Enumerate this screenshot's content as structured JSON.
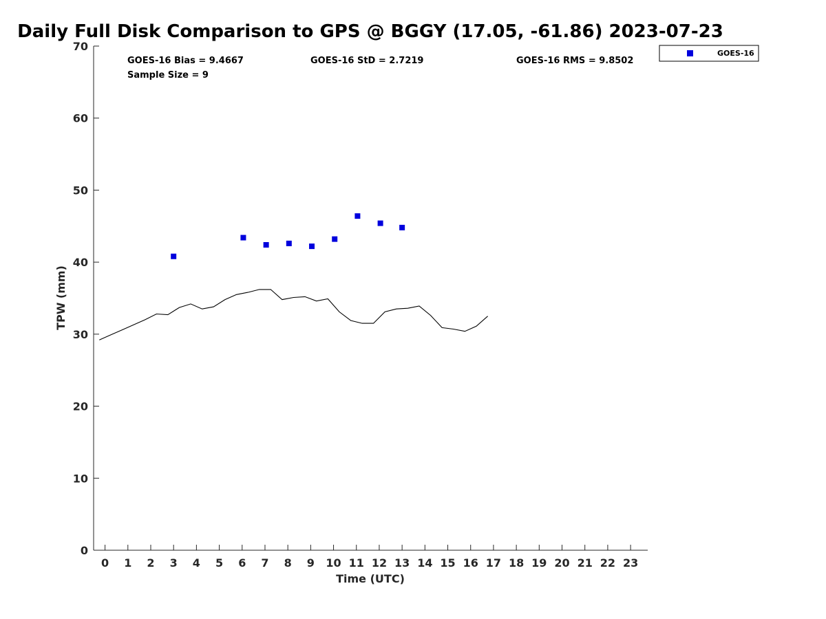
{
  "chart_data": {
    "type": "scatter",
    "title": "Daily Full Disk Comparison to GPS @ BGGY (17.05, -61.86) 2023-07-23",
    "xlabel": "Time (UTC)",
    "ylabel": "TPW (mm)",
    "xlim": [
      -0.5,
      23.75
    ],
    "ylim": [
      0,
      70
    ],
    "x_ticks": [
      "0",
      "1",
      "2",
      "3",
      "4",
      "5",
      "6",
      "7",
      "8",
      "9",
      "10",
      "11",
      "12",
      "13",
      "14",
      "15",
      "16",
      "17",
      "18",
      "19",
      "20",
      "21",
      "22",
      "23"
    ],
    "y_ticks": [
      "0",
      "10",
      "20",
      "30",
      "40",
      "50",
      "60",
      "70"
    ],
    "grid": false,
    "legend_position": "top-right, outside plot",
    "stats": {
      "bias": "GOES-16 Bias = 9.4667",
      "std": "GOES-16 StD = 2.7219",
      "rms": "GOES-16 RMS = 9.8502",
      "sample": "Sample Size = 9"
    },
    "series": [
      {
        "name": "GOES-16",
        "kind": "scatter",
        "marker": "square",
        "color": "#0000dd",
        "x": [
          3.0,
          6.05,
          7.05,
          8.05,
          9.05,
          10.05,
          11.05,
          12.05,
          13.0
        ],
        "y": [
          40.8,
          43.4,
          42.4,
          42.6,
          42.2,
          43.2,
          46.4,
          45.4,
          44.8
        ]
      },
      {
        "kind": "line",
        "color": "#000000",
        "x": [
          -0.25,
          0.25,
          0.75,
          1.25,
          1.75,
          2.25,
          2.75,
          3.25,
          3.75,
          4.25,
          4.75,
          5.25,
          5.75,
          6.25,
          6.75,
          7.25,
          7.75,
          8.25,
          8.75,
          9.25,
          9.75,
          10.25,
          10.75,
          11.25,
          11.75,
          12.25,
          12.75,
          13.25,
          13.75,
          14.25,
          14.75,
          15.25,
          15.75,
          16.25,
          16.75
        ],
        "y": [
          29.2,
          29.9,
          30.6,
          31.3,
          32.0,
          32.8,
          32.7,
          33.7,
          34.2,
          33.5,
          33.8,
          34.8,
          35.5,
          35.8,
          36.2,
          36.2,
          34.8,
          35.1,
          35.2,
          34.6,
          34.9,
          33.1,
          31.9,
          31.5,
          31.5,
          33.1,
          33.5,
          33.6,
          33.9,
          32.6,
          30.9,
          30.7,
          30.4,
          31.1,
          32.5
        ]
      }
    ]
  }
}
